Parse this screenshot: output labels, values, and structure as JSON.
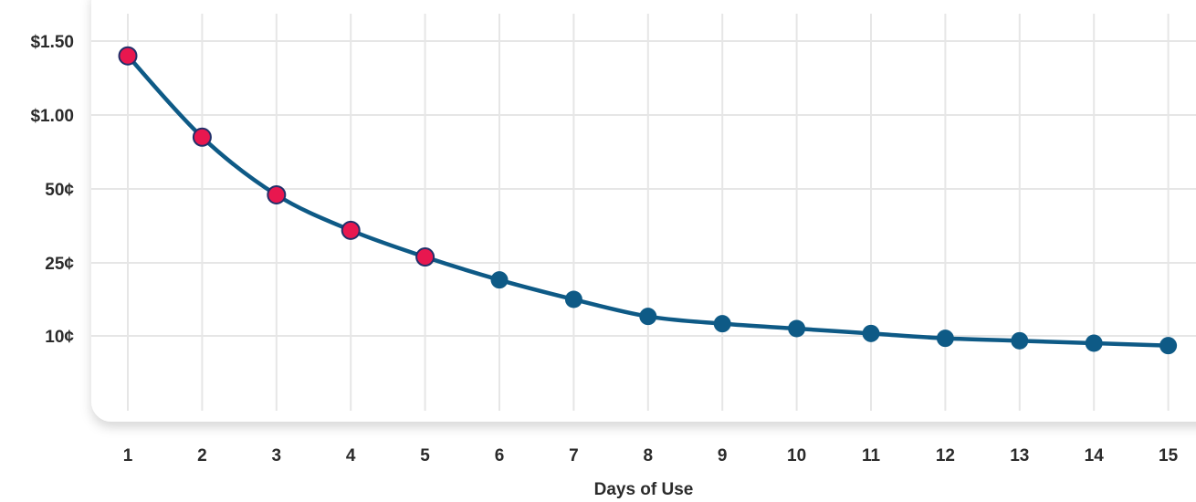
{
  "chart_data": {
    "type": "line",
    "title": "",
    "xlabel": "Days of Use",
    "ylabel": "",
    "x": [
      1,
      2,
      3,
      4,
      5,
      6,
      7,
      8,
      9,
      10,
      11,
      12,
      13,
      14,
      15
    ],
    "xticks": [
      "1",
      "2",
      "3",
      "4",
      "5",
      "6",
      "7",
      "8",
      "9",
      "10",
      "11",
      "12",
      "13",
      "14",
      "15"
    ],
    "yticks": [
      "$1.50",
      "$1.00",
      "50¢",
      "25¢",
      "10¢"
    ],
    "ytick_values": [
      1.5,
      1.0,
      0.5,
      0.25,
      0.1
    ],
    "y_scale": "nonlinear (equally spaced tick labels)",
    "grid": true,
    "series": [
      {
        "values": [
          1.4,
          0.85,
          0.48,
          0.36,
          0.27,
          0.215,
          0.175,
          0.14,
          0.125,
          0.115,
          0.105,
          0.095,
          0.09,
          0.085,
          0.08
        ]
      }
    ],
    "highlighted_points": [
      1,
      2,
      3,
      4,
      5
    ],
    "colors": {
      "line": "#0e5a86",
      "point": "#0e5a86",
      "highlight_point": "#e8174f",
      "highlight_stroke": "#22306a",
      "grid": "#e6e6e6",
      "panel": "#ffffff",
      "text": "#2b2b2b"
    }
  }
}
